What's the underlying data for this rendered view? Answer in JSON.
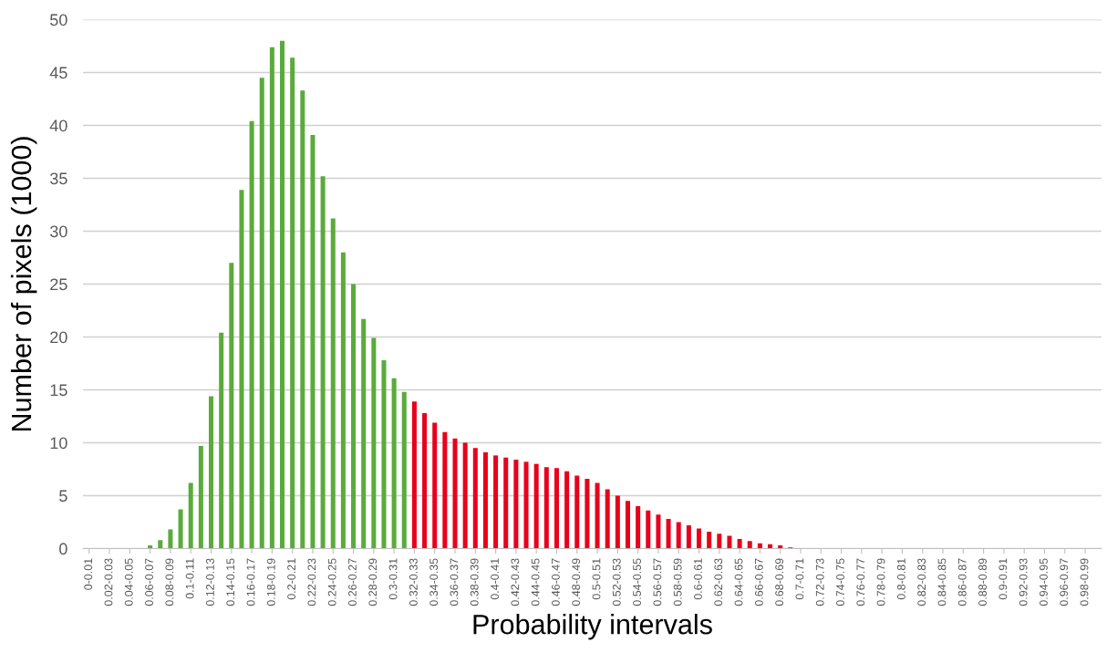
{
  "chart_data": {
    "type": "bar",
    "xlabel": "Probability intervals",
    "ylabel": "Number of pixels (1000)",
    "categories": [
      "0-0.01",
      null,
      "0.02-0.03",
      null,
      "0.04-0.05",
      null,
      "0.06-0.07",
      null,
      "0.08-0.09",
      null,
      "0.1-0.11",
      null,
      "0.12-0.13",
      null,
      "0.14-0.15",
      null,
      "0.16-0.17",
      null,
      "0.18-0.19",
      null,
      "0.2-0.21",
      null,
      "0.22-0.23",
      null,
      "0.24-0.25",
      null,
      "0.26-0.27",
      null,
      "0.28-0.29",
      null,
      "0.3-0.31",
      null,
      "0.32-0.33",
      null,
      "0.34-0.35",
      null,
      "0.36-0.37",
      null,
      "0.38-0.39",
      null,
      "0.4-0.41",
      null,
      "0.42-0.43",
      null,
      "0.44-0.45",
      null,
      "0.46-0.47",
      null,
      "0.48-0.49",
      null,
      "0.5-0.51",
      null,
      "0.52-0.53",
      null,
      "0.54-0.55",
      null,
      "0.56-0.57",
      null,
      "0.58-0.59",
      null,
      "0.6-0.61",
      null,
      "0.62-0.63",
      null,
      "0.64-0.65",
      null,
      "0.66-0.67",
      null,
      "0.68-0.69",
      null,
      "0.7-0.71",
      null,
      "0.72-0.73",
      null,
      "0.74-0.75",
      null,
      "0.76-0.77",
      null,
      "0.78-0.79",
      null,
      "0.8-0.81",
      null,
      "0.82-0.83",
      null,
      "0.84-0.85",
      null,
      "0.86-0.87",
      null,
      "0.88-0.89",
      null,
      "0.9-0.91",
      null,
      "0.92-0.93",
      null,
      "0.94-0.95",
      null,
      "0.96-0.97",
      null,
      "0.98-0.99",
      null
    ],
    "values": [
      0,
      0,
      0,
      0,
      0,
      0,
      0.3,
      0.8,
      1.8,
      3.7,
      6.2,
      9.7,
      14.4,
      20.4,
      27.0,
      33.9,
      40.4,
      44.5,
      47.4,
      48.0,
      46.4,
      43.3,
      39.1,
      35.2,
      31.2,
      28.0,
      25.0,
      21.7,
      19.9,
      17.8,
      16.1,
      14.8,
      13.9,
      12.8,
      11.9,
      11.0,
      10.4,
      10.0,
      9.5,
      9.1,
      8.8,
      8.6,
      8.4,
      8.2,
      8.0,
      7.7,
      7.6,
      7.3,
      6.9,
      6.6,
      6.2,
      5.6,
      5.0,
      4.5,
      4.0,
      3.6,
      3.2,
      2.8,
      2.5,
      2.2,
      1.9,
      1.6,
      1.4,
      1.2,
      0.9,
      0.7,
      0.5,
      0.4,
      0.3,
      0.1,
      0,
      0,
      0,
      0,
      0,
      0,
      0,
      0,
      0,
      0,
      0,
      0,
      0,
      0,
      0,
      0,
      0,
      0,
      0,
      0,
      0,
      0,
      0,
      0,
      0,
      0,
      0,
      0,
      0,
      0
    ],
    "colors": [
      "#5aab3c",
      "#5aab3c",
      "#5aab3c",
      "#5aab3c",
      "#5aab3c",
      "#5aab3c",
      "#5aab3c",
      "#5aab3c",
      "#5aab3c",
      "#5aab3c",
      "#5aab3c",
      "#5aab3c",
      "#5aab3c",
      "#5aab3c",
      "#5aab3c",
      "#5aab3c",
      "#5aab3c",
      "#5aab3c",
      "#5aab3c",
      "#5aab3c",
      "#5aab3c",
      "#5aab3c",
      "#5aab3c",
      "#5aab3c",
      "#5aab3c",
      "#5aab3c",
      "#5aab3c",
      "#5aab3c",
      "#5aab3c",
      "#5aab3c",
      "#5aab3c",
      "#5aab3c",
      "#e8001c",
      "#e8001c",
      "#e8001c",
      "#e8001c",
      "#e8001c",
      "#e8001c",
      "#e8001c",
      "#e8001c",
      "#e8001c",
      "#e8001c",
      "#e8001c",
      "#e8001c",
      "#e8001c",
      "#e8001c",
      "#e8001c",
      "#e8001c",
      "#e8001c",
      "#e8001c",
      "#e8001c",
      "#e8001c",
      "#e8001c",
      "#e8001c",
      "#e8001c",
      "#e8001c",
      "#e8001c",
      "#e8001c",
      "#e8001c",
      "#e8001c",
      "#e8001c",
      "#e8001c",
      "#e8001c",
      "#e8001c",
      "#e8001c",
      "#e8001c",
      "#e8001c",
      "#e8001c",
      "#e8001c",
      "#e8001c",
      "#e8001c",
      "#e8001c",
      "#e8001c",
      "#e8001c",
      "#e8001c",
      "#e8001c",
      "#e8001c",
      "#e8001c",
      "#e8001c",
      "#e8001c",
      "#e8001c",
      "#e8001c",
      "#e8001c",
      "#e8001c",
      "#e8001c",
      "#e8001c",
      "#e8001c",
      "#e8001c",
      "#e8001c",
      "#e8001c",
      "#e8001c",
      "#e8001c",
      "#e8001c",
      "#e8001c",
      "#e8001c",
      "#e8001c",
      "#e8001c",
      "#e8001c",
      "#e8001c",
      "#e8001c"
    ],
    "ylim": [
      0,
      50
    ],
    "yticks": [
      0,
      5,
      10,
      15,
      20,
      25,
      30,
      35,
      40,
      45,
      50
    ],
    "grid": "y"
  }
}
